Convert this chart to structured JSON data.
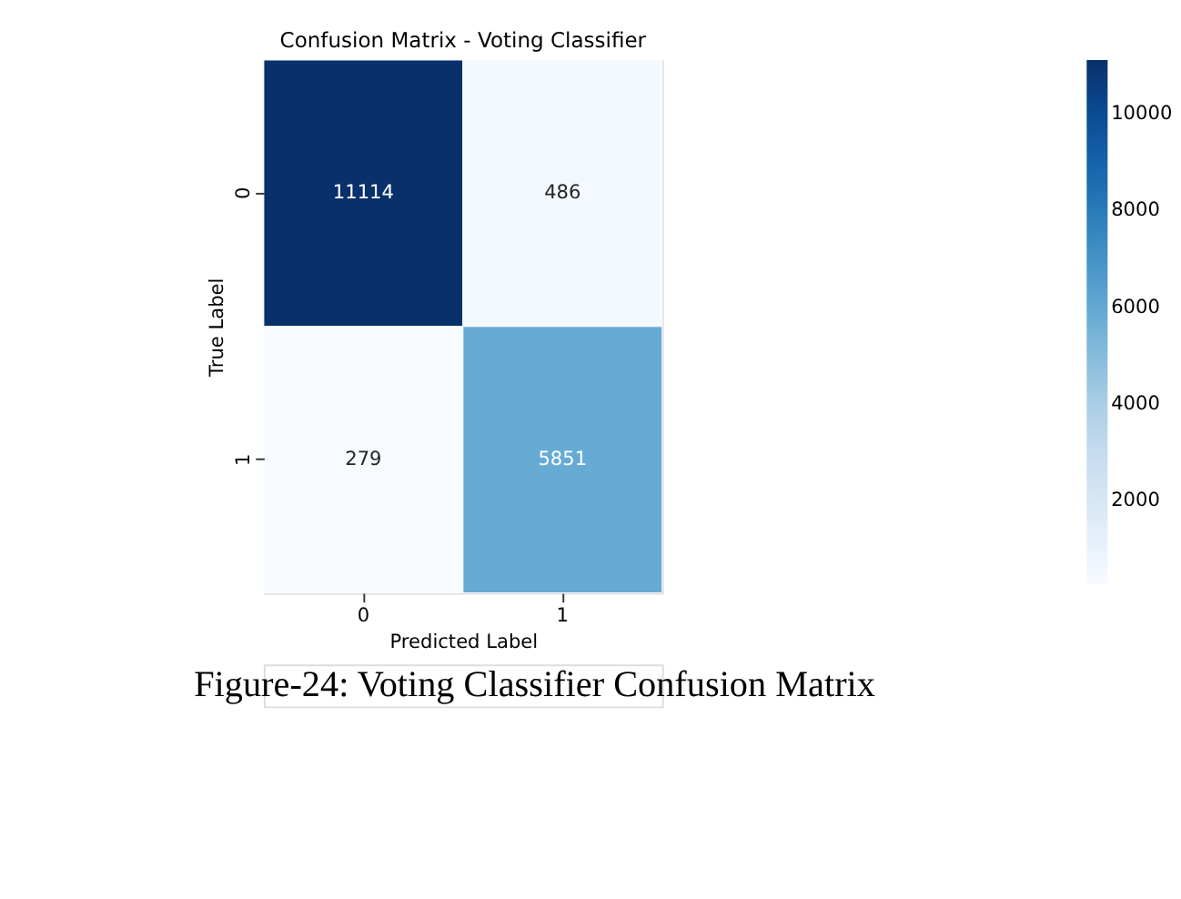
{
  "chart_data": {
    "type": "heatmap",
    "title": "Confusion Matrix - Voting Classifier",
    "xlabel": "Predicted Label",
    "ylabel": "True Label",
    "categories": [
      "0",
      "1"
    ],
    "y_categories": [
      "0",
      "1"
    ],
    "cells": [
      [
        11114,
        486
      ],
      [
        279,
        5851
      ]
    ],
    "clim": [
      279,
      11114
    ],
    "cticks": [
      2000,
      4000,
      6000,
      8000,
      10000
    ],
    "data_labels": true,
    "annotations": [
      "Figure-24: Voting Classifier Confusion Matrix"
    ]
  }
}
